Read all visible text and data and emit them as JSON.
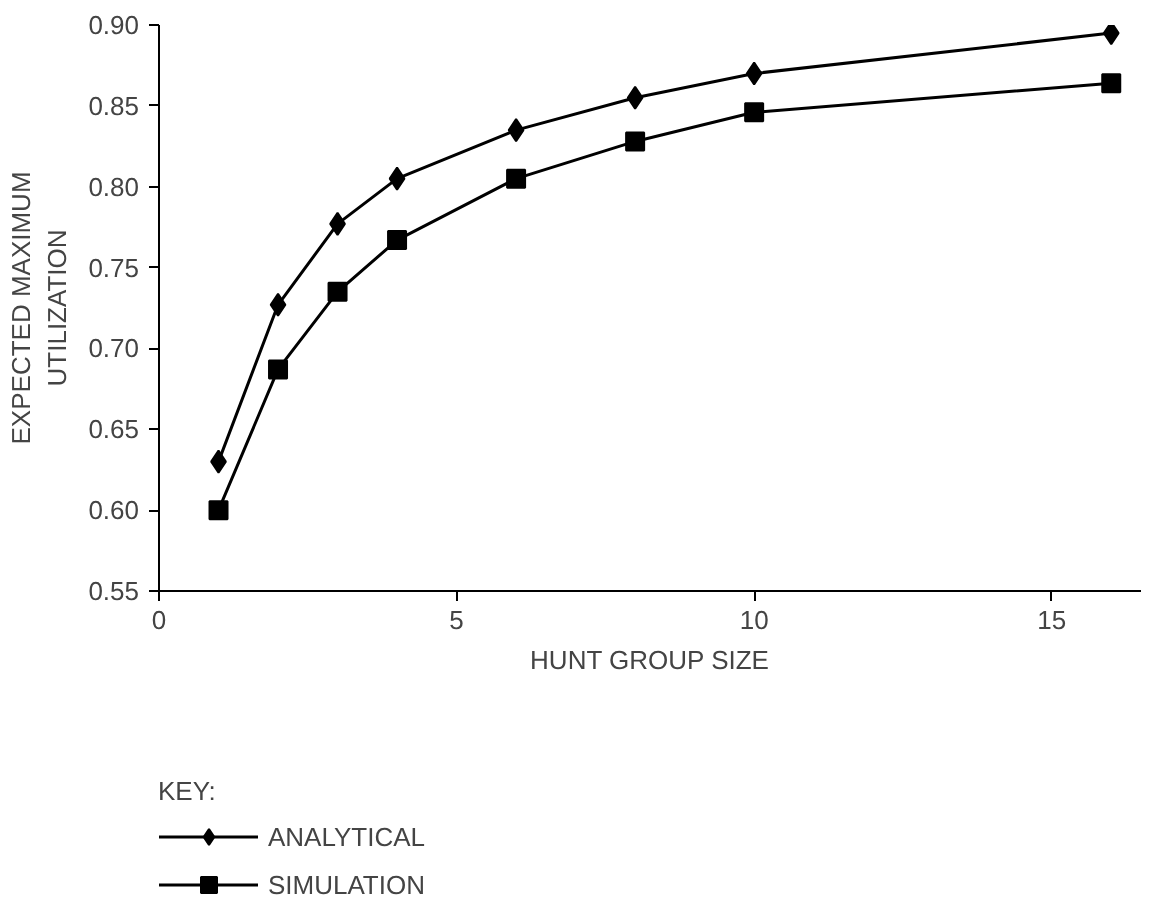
{
  "chart_data": {
    "type": "line",
    "xlabel": "HUNT GROUP SIZE",
    "ylabel": "EXPECTED MAXIMUM UTILIZATION",
    "legend_title": "KEY:",
    "x": [
      1,
      2,
      3,
      4,
      6,
      8,
      10,
      16
    ],
    "series": [
      {
        "name": "ANALYTICAL",
        "color": "#000000",
        "marker": "diamond",
        "values": [
          0.63,
          0.727,
          0.777,
          0.805,
          0.835,
          0.855,
          0.87,
          0.895
        ]
      },
      {
        "name": "SIMULATION",
        "color": "#000000",
        "marker": "square",
        "values": [
          0.6,
          0.687,
          0.735,
          0.767,
          0.805,
          0.828,
          0.846,
          0.864
        ]
      }
    ],
    "xlim": [
      0,
      16.5
    ],
    "xticks": [
      0,
      5,
      10,
      15
    ],
    "ylim": [
      0.55,
      0.9
    ],
    "yticks": [
      {
        "value": 0.55,
        "label": "0.55"
      },
      {
        "value": 0.6,
        "label": "0.60"
      },
      {
        "value": 0.65,
        "label": "0.65"
      },
      {
        "value": 0.7,
        "label": "0.70"
      },
      {
        "value": 0.75,
        "label": "0.75"
      },
      {
        "value": 0.8,
        "label": "0.80"
      },
      {
        "value": 0.85,
        "label": "0.85"
      },
      {
        "value": 0.9,
        "label": "0.90"
      }
    ],
    "grid": false,
    "legend": "bottom left",
    "line_style": "solid"
  }
}
